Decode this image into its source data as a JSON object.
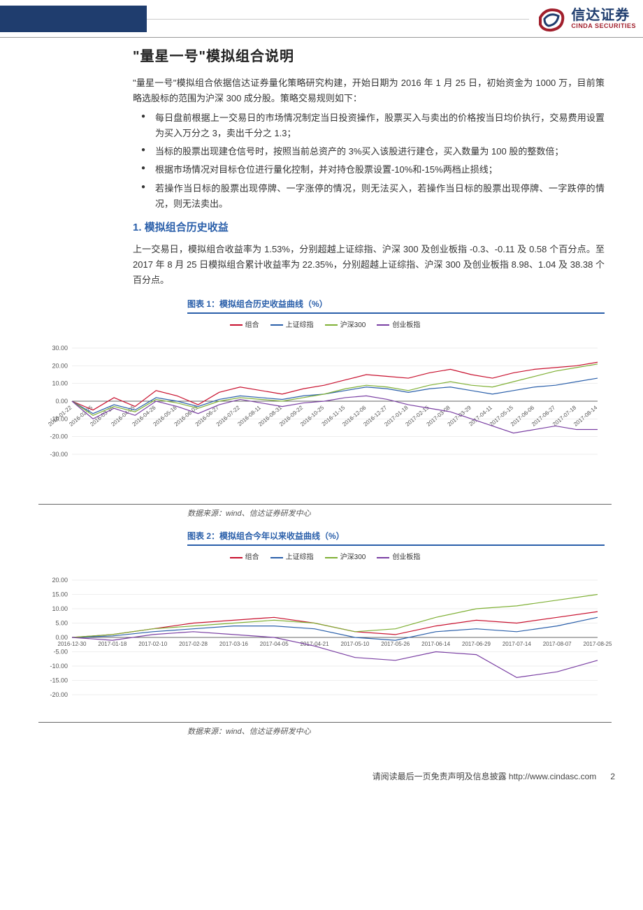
{
  "logo": {
    "cn": "信达证券",
    "en": "CINDA SECURITIES"
  },
  "title": "\"量星一号\"模拟组合说明",
  "intro": "\"量星一号\"模拟组合依据信达证券量化策略研究构建，开始日期为 2016 年 1 月 25 日，初始资金为 1000 万，目前策略选股标的范围为沪深 300 成分股。策略交易规则如下：",
  "bullets": [
    "每日盘前根据上一交易日的市场情况制定当日投资操作，股票买入与卖出的价格按当日均价执行，交易费用设置为买入万分之 3，卖出千分之 1.3；",
    "当标的股票出现建仓信号时，按照当前总资产的 3%买入该股进行建仓，买入数量为 100 股的整数倍；",
    "根据市场情况对目标仓位进行量化控制，并对持仓股票设置-10%和-15%两档止损线；",
    "若操作当日标的股票出现停牌、一字涨停的情况，则无法买入，若操作当日标的股票出现停牌、一字跌停的情况，则无法卖出。"
  ],
  "section1": {
    "num": "1.",
    "title": "模拟组合历史收益",
    "para": "上一交易日，模拟组合收益率为 1.53%，分别超越上证综指、沪深 300 及创业板指 -0.3、-0.11 及 0.58 个百分点。至 2017 年 8 月 25 日模拟组合累计收益率为 22.35%，分别超越上证综指、沪深 300 及创业板指 8.98、1.04 及 38.38 个百分点。"
  },
  "chart1": {
    "caption": "图表 1：模拟组合历史收益曲线（%）",
    "source": "数据来源：wind、信达证券研发中心",
    "type": "line",
    "title_fontsize": 12,
    "background_color": "#ffffff",
    "grid_color": "#dddddd",
    "axis_color": "#666666",
    "label_fontsize": 9,
    "line_width": 1.2,
    "ylim": [
      -30,
      30
    ],
    "ytick_step": 10,
    "yticks": [
      "-30.00",
      "-20.00",
      "-10.00",
      "0.00",
      "10.00",
      "20.00",
      "30.00"
    ],
    "xlabels": [
      "2016-01-22",
      "2016-02-25",
      "2016-03-16",
      "2016-04-05",
      "2016-04-26",
      "2016-05-16",
      "2016-06-03",
      "2016-06-27",
      "2016-07-22",
      "2016-08-11",
      "2016-08-31",
      "2016-09-22",
      "2016-10-25",
      "2016-11-15",
      "2016-12-06",
      "2016-12-27",
      "2017-01-18",
      "2017-02-15",
      "2017-03-08",
      "2017-03-29",
      "2017-04-11",
      "2017-05-15",
      "2017-06-06",
      "2017-06-27",
      "2017-07-18",
      "2017-08-14"
    ],
    "legend": [
      {
        "name": "组合",
        "color": "#c8102e"
      },
      {
        "name": "上证综指",
        "color": "#2a5faa"
      },
      {
        "name": "沪深300",
        "color": "#7fb035"
      },
      {
        "name": "创业板指",
        "color": "#7a3fa3"
      }
    ],
    "series": {
      "combo": [
        0,
        -5,
        2,
        -3,
        6,
        3,
        -2,
        5,
        8,
        6,
        4,
        7,
        9,
        12,
        15,
        14,
        13,
        16,
        18,
        15,
        13,
        16,
        18,
        19,
        20,
        22
      ],
      "sse": [
        0,
        -7,
        -2,
        -5,
        2,
        0,
        -3,
        1,
        3,
        2,
        1,
        3,
        4,
        6,
        8,
        7,
        5,
        7,
        8,
        6,
        4,
        6,
        8,
        9,
        11,
        13
      ],
      "hs300": [
        0,
        -8,
        -3,
        -6,
        1,
        -1,
        -4,
        0,
        2,
        1,
        0,
        2,
        4,
        7,
        9,
        8,
        6,
        9,
        11,
        9,
        8,
        11,
        14,
        17,
        19,
        21
      ],
      "chinext": [
        0,
        -10,
        -4,
        -8,
        0,
        -3,
        -7,
        -2,
        1,
        -1,
        -3,
        -1,
        0,
        2,
        3,
        1,
        -2,
        -4,
        -6,
        -10,
        -14,
        -18,
        -16,
        -14,
        -16,
        -16
      ]
    }
  },
  "chart2": {
    "caption": "图表 2：模拟组合今年以来收益曲线（%）",
    "source": "数据来源：wind、信达证券研发中心",
    "type": "line",
    "background_color": "#ffffff",
    "grid_color": "#dddddd",
    "axis_color": "#666666",
    "label_fontsize": 9,
    "line_width": 1.2,
    "ylim": [
      -20,
      20
    ],
    "ytick_step": 5,
    "yticks": [
      "-20.00",
      "-15.00",
      "-10.00",
      "-5.00",
      "0.00",
      "5.00",
      "10.00",
      "15.00",
      "20.00"
    ],
    "xlabels": [
      "2016-12-30",
      "2017-01-18",
      "2017-02-10",
      "2017-02-28",
      "2017-03-16",
      "2017-04-05",
      "2017-04-21",
      "2017-05-10",
      "2017-05-26",
      "2017-06-14",
      "2017-06-29",
      "2017-07-14",
      "2017-08-07",
      "2017-08-25"
    ],
    "legend": [
      {
        "name": "组合",
        "color": "#c8102e"
      },
      {
        "name": "上证综指",
        "color": "#2a5faa"
      },
      {
        "name": "沪深300",
        "color": "#7fb035"
      },
      {
        "name": "创业板指",
        "color": "#7a3fa3"
      }
    ],
    "series": {
      "combo": [
        0,
        1,
        3,
        5,
        6,
        7,
        5,
        2,
        1,
        4,
        6,
        5,
        7,
        9
      ],
      "sse": [
        0,
        0.5,
        2,
        3,
        4,
        4,
        3,
        0,
        -1,
        2,
        3,
        2,
        4,
        7
      ],
      "hs300": [
        0,
        1,
        3,
        4,
        5,
        6,
        5,
        2,
        3,
        7,
        10,
        11,
        13,
        15
      ],
      "chinext": [
        0,
        -1,
        1,
        2,
        1,
        0,
        -3,
        -7,
        -8,
        -5,
        -6,
        -14,
        -12,
        -8
      ]
    }
  },
  "footer": {
    "disclaimer": "请阅读最后一页免责声明及信息披露 http://www.cindasc.com",
    "page": "2"
  }
}
